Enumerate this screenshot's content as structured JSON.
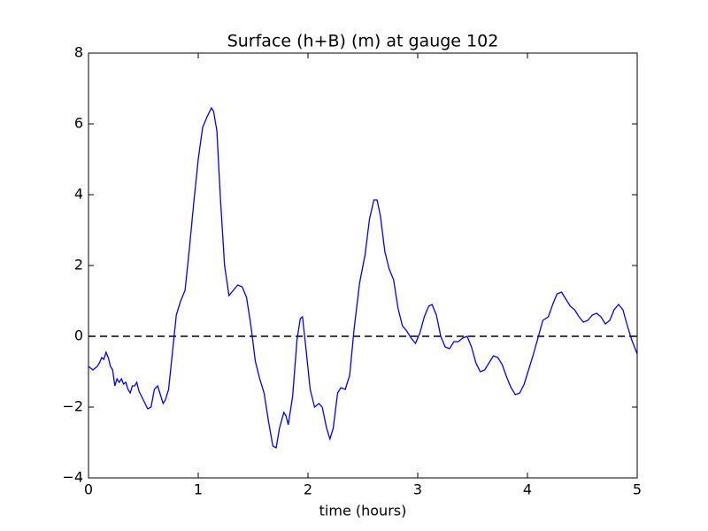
{
  "chart_data": {
    "type": "line",
    "title": "Surface (h+B) (m) at gauge 102",
    "x_label": "time (hours)",
    "x": [
      0,
      0.04,
      0.08,
      0.1,
      0.12,
      0.14,
      0.16,
      0.18,
      0.2,
      0.22,
      0.24,
      0.26,
      0.28,
      0.3,
      0.32,
      0.34,
      0.36,
      0.38,
      0.4,
      0.42,
      0.44,
      0.46,
      0.5,
      0.54,
      0.57,
      0.6,
      0.63,
      0.65,
      0.68,
      0.7,
      0.73,
      0.76,
      0.8,
      0.84,
      0.88,
      0.92,
      0.96,
      1.0,
      1.04,
      1.08,
      1.12,
      1.14,
      1.17,
      1.2,
      1.24,
      1.28,
      1.32,
      1.36,
      1.4,
      1.44,
      1.48,
      1.52,
      1.56,
      1.6,
      1.64,
      1.68,
      1.71,
      1.74,
      1.78,
      1.8,
      1.82,
      1.86,
      1.9,
      1.93,
      1.95,
      1.98,
      2.02,
      2.06,
      2.1,
      2.13,
      2.17,
      2.2,
      2.23,
      2.27,
      2.3,
      2.34,
      2.38,
      2.42,
      2.47,
      2.52,
      2.56,
      2.6,
      2.63,
      2.66,
      2.7,
      2.74,
      2.78,
      2.82,
      2.86,
      2.9,
      2.94,
      2.98,
      3.02,
      3.06,
      3.1,
      3.13,
      3.17,
      3.21,
      3.25,
      3.29,
      3.33,
      3.37,
      3.41,
      3.45,
      3.49,
      3.53,
      3.57,
      3.61,
      3.65,
      3.69,
      3.73,
      3.77,
      3.81,
      3.85,
      3.89,
      3.93,
      3.97,
      4.01,
      4.05,
      4.1,
      4.14,
      4.19,
      4.23,
      4.27,
      4.31,
      4.35,
      4.39,
      4.43,
      4.47,
      4.51,
      4.55,
      4.59,
      4.63,
      4.67,
      4.71,
      4.75,
      4.79,
      4.83,
      4.87,
      4.91,
      4.95,
      5.0
    ],
    "series": [
      {
        "color": "#0000ff",
        "values": [
          -0.85,
          -0.95,
          -0.85,
          -0.75,
          -0.6,
          -0.65,
          -0.45,
          -0.6,
          -0.85,
          -0.95,
          -1.4,
          -1.2,
          -1.3,
          -1.2,
          -1.35,
          -1.3,
          -1.5,
          -1.6,
          -1.4,
          -1.4,
          -1.3,
          -1.55,
          -1.8,
          -2.05,
          -2.0,
          -1.5,
          -1.4,
          -1.6,
          -1.9,
          -1.8,
          -1.5,
          -0.6,
          0.6,
          1.0,
          1.3,
          2.5,
          3.8,
          5.0,
          5.9,
          6.2,
          6.45,
          6.35,
          5.8,
          4.0,
          2.0,
          1.15,
          1.3,
          1.45,
          1.4,
          1.1,
          0.3,
          -0.7,
          -1.2,
          -1.6,
          -2.4,
          -3.1,
          -3.15,
          -2.6,
          -2.15,
          -2.25,
          -2.5,
          -1.7,
          -0.1,
          0.5,
          0.55,
          -0.3,
          -1.5,
          -2.0,
          -1.9,
          -2.0,
          -2.6,
          -2.9,
          -2.6,
          -1.6,
          -1.45,
          -1.5,
          -1.1,
          0.2,
          1.5,
          2.3,
          3.3,
          3.85,
          3.85,
          3.4,
          2.4,
          1.9,
          1.6,
          0.8,
          0.3,
          0.15,
          -0.05,
          -0.2,
          0.1,
          0.55,
          0.85,
          0.9,
          0.6,
          0.0,
          -0.3,
          -0.35,
          -0.15,
          -0.15,
          -0.05,
          0.0,
          -0.3,
          -0.75,
          -1.0,
          -0.95,
          -0.75,
          -0.55,
          -0.6,
          -0.8,
          -1.15,
          -1.45,
          -1.65,
          -1.6,
          -1.35,
          -0.95,
          -0.55,
          0.0,
          0.45,
          0.55,
          0.9,
          1.2,
          1.25,
          1.05,
          0.85,
          0.75,
          0.55,
          0.4,
          0.45,
          0.6,
          0.65,
          0.55,
          0.35,
          0.45,
          0.75,
          0.9,
          0.75,
          0.3,
          -0.1,
          -0.5
        ]
      }
    ],
    "xlim": [
      0,
      5
    ],
    "xticks": [
      0,
      1,
      2,
      3,
      4,
      5
    ],
    "ylim": [
      -4,
      8
    ],
    "yticks": [
      {
        "value": -4,
        "label": "−4"
      },
      {
        "value": -2,
        "label": "−2"
      },
      0,
      2,
      4,
      6,
      8
    ],
    "hlines": [
      {
        "value": 0,
        "color": "#000000",
        "dash": "8,5"
      }
    ]
  }
}
